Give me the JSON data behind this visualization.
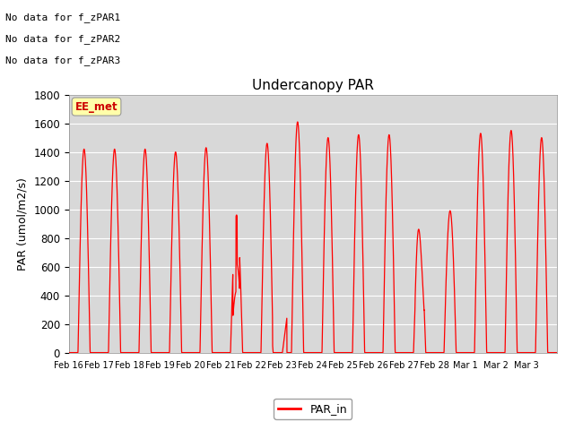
{
  "title": "Undercanopy PAR",
  "ylabel": "PAR (umol/m2/s)",
  "ylim": [
    0,
    1800
  ],
  "yticks": [
    0,
    200,
    400,
    600,
    800,
    1000,
    1200,
    1400,
    1600,
    1800
  ],
  "line_color": "#ff0000",
  "bg_color": "#d8d8d8",
  "no_data_labels": [
    "No data for f_zPAR1",
    "No data for f_zPAR2",
    "No data for f_zPAR3"
  ],
  "ee_met_label": "EE_met",
  "legend_label": "PAR_in",
  "date_labels": [
    "Feb 16",
    "Feb 17",
    "Feb 18",
    "Feb 19",
    "Feb 20",
    "Feb 21",
    "Feb 22",
    "Feb 23",
    "Feb 24",
    "Feb 25",
    "Feb 26",
    "Feb 27",
    "Feb 28",
    "Mar 1",
    "Mar 2",
    "Mar 3"
  ],
  "peak_heights": [
    1420,
    1420,
    1420,
    1400,
    1430,
    960,
    1460,
    1610,
    1500,
    1520,
    1520,
    830,
    990,
    1530,
    1550,
    1500
  ],
  "figsize": [
    6.4,
    4.8
  ],
  "dpi": 100
}
